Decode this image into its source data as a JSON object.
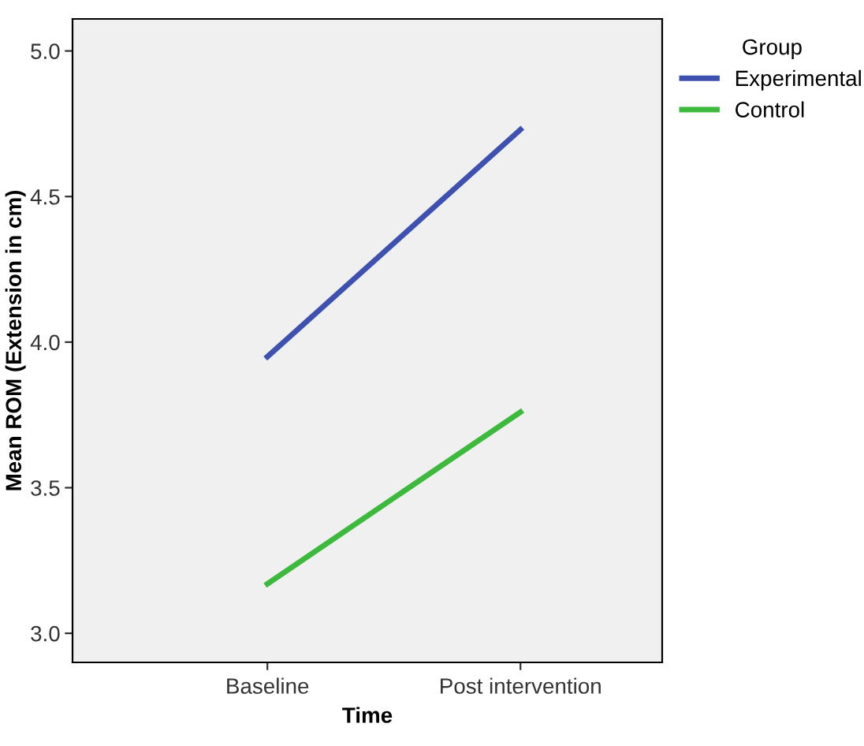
{
  "chart_data": {
    "type": "line",
    "xlabel": "Time",
    "ylabel": "Mean ROM (Extension in cm)",
    "legend_title": "Group",
    "legend": "top right",
    "categories": [
      "Baseline",
      "Post intervention"
    ],
    "series": [
      {
        "name": "Experimental",
        "color": "#3f51b0",
        "values": [
          3.95,
          4.73
        ]
      },
      {
        "name": "Control",
        "color": "#3dba3d",
        "values": [
          3.17,
          3.76
        ]
      }
    ],
    "ylim": [
      2.9,
      5.11
    ],
    "yticks": [
      {
        "value": 3,
        "label": "3.0"
      },
      3.5,
      {
        "value": 4,
        "label": "4.0"
      },
      4.5,
      {
        "value": 5,
        "label": "5.0"
      }
    ],
    "grid": false,
    "marker": "none",
    "line_style": "solid"
  }
}
